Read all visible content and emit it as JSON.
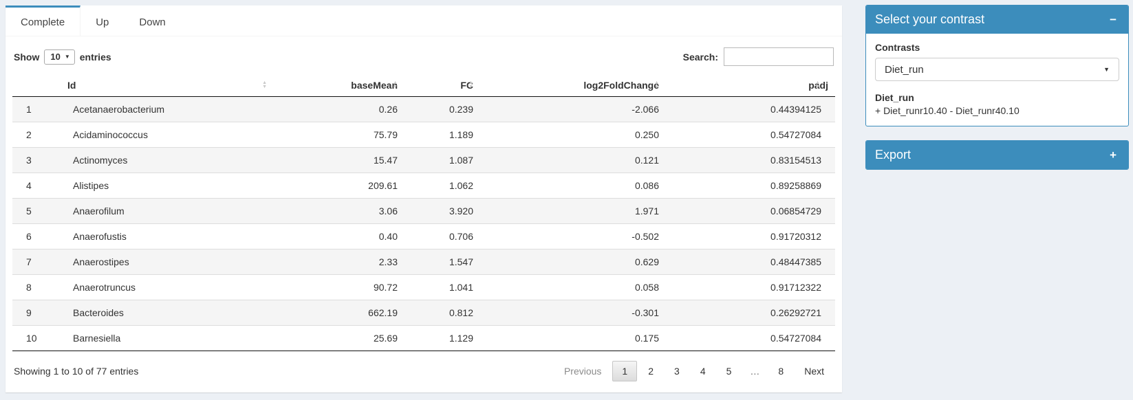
{
  "colors": {
    "accent": "#3c8dbc",
    "page_bg": "#ecf0f5"
  },
  "icons": {
    "sort_asc": "▲",
    "sort_desc": "▼",
    "caret_down": "▼",
    "collapse_minus": "−",
    "expand_plus": "+"
  },
  "tabs": [
    {
      "label": "Complete",
      "active": true
    },
    {
      "label": "Up",
      "active": false
    },
    {
      "label": "Down",
      "active": false
    }
  ],
  "table_controls": {
    "show_label": "Show",
    "page_length": "10",
    "entries_label": "entries",
    "search_label": "Search:",
    "search_value": ""
  },
  "table": {
    "columns": [
      "Id",
      "baseMean",
      "FC",
      "log2FoldChange",
      "padj"
    ],
    "rows": [
      {
        "n": "1",
        "id": "Acetanaerobacterium",
        "baseMean": "0.26",
        "fc": "0.239",
        "log2fc": "-2.066",
        "padj": "0.44394125"
      },
      {
        "n": "2",
        "id": "Acidaminococcus",
        "baseMean": "75.79",
        "fc": "1.189",
        "log2fc": "0.250",
        "padj": "0.54727084"
      },
      {
        "n": "3",
        "id": "Actinomyces",
        "baseMean": "15.47",
        "fc": "1.087",
        "log2fc": "0.121",
        "padj": "0.83154513"
      },
      {
        "n": "4",
        "id": "Alistipes",
        "baseMean": "209.61",
        "fc": "1.062",
        "log2fc": "0.086",
        "padj": "0.89258869"
      },
      {
        "n": "5",
        "id": "Anaerofilum",
        "baseMean": "3.06",
        "fc": "3.920",
        "log2fc": "1.971",
        "padj": "0.06854729"
      },
      {
        "n": "6",
        "id": "Anaerofustis",
        "baseMean": "0.40",
        "fc": "0.706",
        "log2fc": "-0.502",
        "padj": "0.91720312"
      },
      {
        "n": "7",
        "id": "Anaerostipes",
        "baseMean": "2.33",
        "fc": "1.547",
        "log2fc": "0.629",
        "padj": "0.48447385"
      },
      {
        "n": "8",
        "id": "Anaerotruncus",
        "baseMean": "90.72",
        "fc": "1.041",
        "log2fc": "0.058",
        "padj": "0.91712322"
      },
      {
        "n": "9",
        "id": "Bacteroides",
        "baseMean": "662.19",
        "fc": "0.812",
        "log2fc": "-0.301",
        "padj": "0.26292721"
      },
      {
        "n": "10",
        "id": "Barnesiella",
        "baseMean": "25.69",
        "fc": "1.129",
        "log2fc": "0.175",
        "padj": "0.54727084"
      }
    ]
  },
  "footer": {
    "info": "Showing 1 to 10 of 77 entries",
    "pagination": [
      "Previous",
      "1",
      "2",
      "3",
      "4",
      "5",
      "…",
      "8",
      "Next"
    ],
    "current_page": "1"
  },
  "sidebar": {
    "contrast_box": {
      "title": "Select your contrast",
      "contrasts_label": "Contrasts",
      "selected_contrast": "Diet_run",
      "contrast_name": "Diet_run",
      "contrast_formula": "+ Diet_runr10.40 - Diet_runr40.10"
    },
    "export_box": {
      "title": "Export"
    }
  }
}
